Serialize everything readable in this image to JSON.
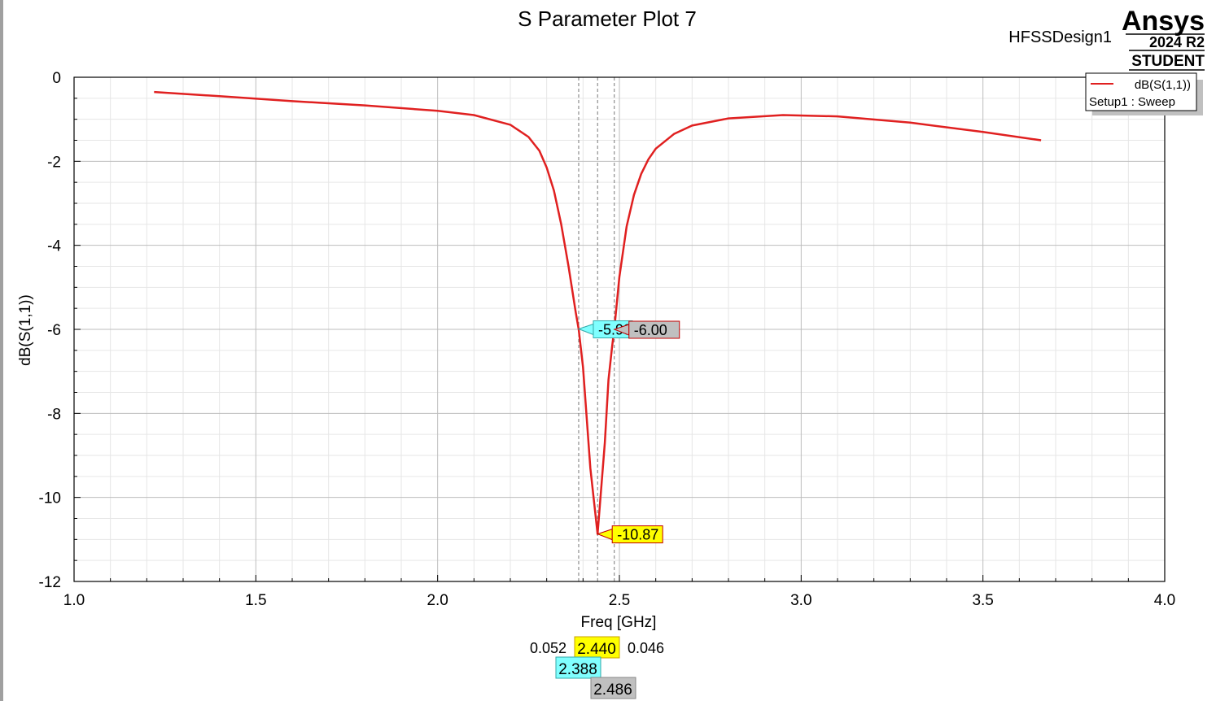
{
  "header": {
    "title": "S Parameter Plot 7",
    "design_name": "HFSSDesign1",
    "brand": "Ansys",
    "version": "2024 R2",
    "edition": "STUDENT"
  },
  "legend": {
    "trace_label": "dB(S(1,1))",
    "trace_source": "Setup1 : Sweep",
    "trace_color": "#e02020"
  },
  "chart_data": {
    "type": "line",
    "title": "S Parameter Plot 7",
    "xlabel": "Freq [GHz]",
    "ylabel": "dB(S(1,1))",
    "xlim": [
      1.0,
      4.0
    ],
    "ylim": [
      -12,
      0
    ],
    "x_ticks": [
      "1.0",
      "1.5",
      "2.0",
      "2.5",
      "3.0",
      "3.5",
      "4.0"
    ],
    "y_ticks": [
      "0",
      "-2",
      "-4",
      "-6",
      "-8",
      "-10",
      "-12"
    ],
    "grid": true,
    "legend_position": "top-right",
    "series": [
      {
        "name": "dB(S(1,1))",
        "color": "#e02020",
        "x": [
          1.22,
          1.4,
          1.6,
          1.8,
          2.0,
          2.1,
          2.2,
          2.25,
          2.28,
          2.3,
          2.32,
          2.34,
          2.36,
          2.38,
          2.388,
          2.4,
          2.42,
          2.44,
          2.46,
          2.47,
          2.48,
          2.486,
          2.5,
          2.52,
          2.54,
          2.56,
          2.58,
          2.6,
          2.65,
          2.7,
          2.8,
          2.95,
          3.1,
          3.3,
          3.5,
          3.66
        ],
        "y": [
          -0.35,
          -0.45,
          -0.57,
          -0.67,
          -0.8,
          -0.9,
          -1.13,
          -1.42,
          -1.75,
          -2.15,
          -2.7,
          -3.5,
          -4.5,
          -5.6,
          -6.0,
          -6.9,
          -9.3,
          -10.87,
          -8.7,
          -7.2,
          -6.4,
          -6.0,
          -4.75,
          -3.55,
          -2.8,
          -2.3,
          -1.95,
          -1.7,
          -1.35,
          -1.15,
          -0.98,
          -0.9,
          -0.93,
          -1.08,
          -1.3,
          -1.5
        ]
      }
    ],
    "markers": [
      {
        "id": "m1",
        "x": 2.44,
        "y": -10.87,
        "x_label": "2.440",
        "y_label": "-10.87",
        "color": "#ffff00"
      },
      {
        "id": "m2",
        "x": 2.388,
        "y": -5.99,
        "x_label": "2.388",
        "y_label": "-5.99",
        "color": "#80ffff"
      },
      {
        "id": "m3",
        "x": 2.486,
        "y": -6.0,
        "x_label": "2.486",
        "y_label": "-6.00",
        "color": "#c0c0c0"
      }
    ],
    "delta_labels": {
      "left": "0.052",
      "right": "0.046"
    }
  }
}
